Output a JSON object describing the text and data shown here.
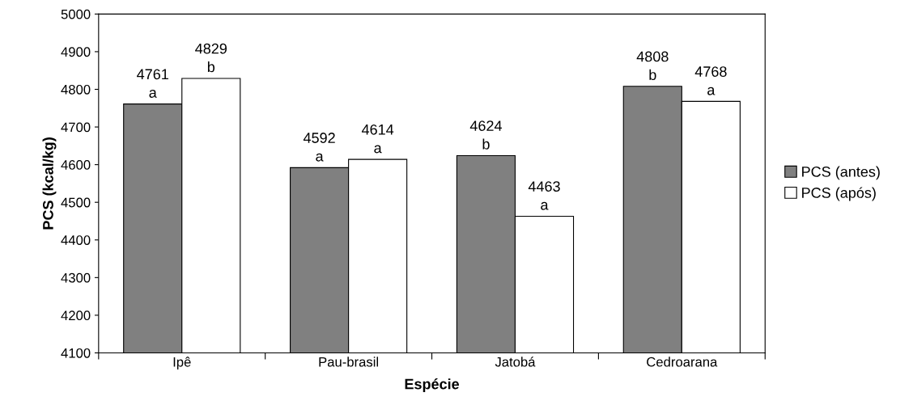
{
  "chart_data": {
    "type": "bar",
    "xlabel": "Espécie",
    "ylabel": "PCS (kcal/kg)",
    "categories": [
      "Ipê",
      "Pau-brasil",
      "Jatobá",
      "Cedroarana"
    ],
    "series": [
      {
        "name": "PCS (antes)",
        "color": "#808080",
        "values": [
          4761,
          4592,
          4624,
          4808
        ],
        "value_labels": [
          "4761\na",
          "4592\na",
          "4624\nb",
          "4808\nb"
        ]
      },
      {
        "name": "PCS (após)",
        "color": "#ffffff",
        "values": [
          4829,
          4614,
          4463,
          4768
        ],
        "value_labels": [
          "4829\nb",
          "4614\na",
          "4463\na",
          "4768\na"
        ]
      }
    ],
    "ylim": [
      4100,
      5000
    ],
    "yticks": [
      4100,
      4200,
      4300,
      4400,
      4500,
      4600,
      4700,
      4800,
      4900,
      5000
    ],
    "grid": false,
    "legend": "right"
  }
}
